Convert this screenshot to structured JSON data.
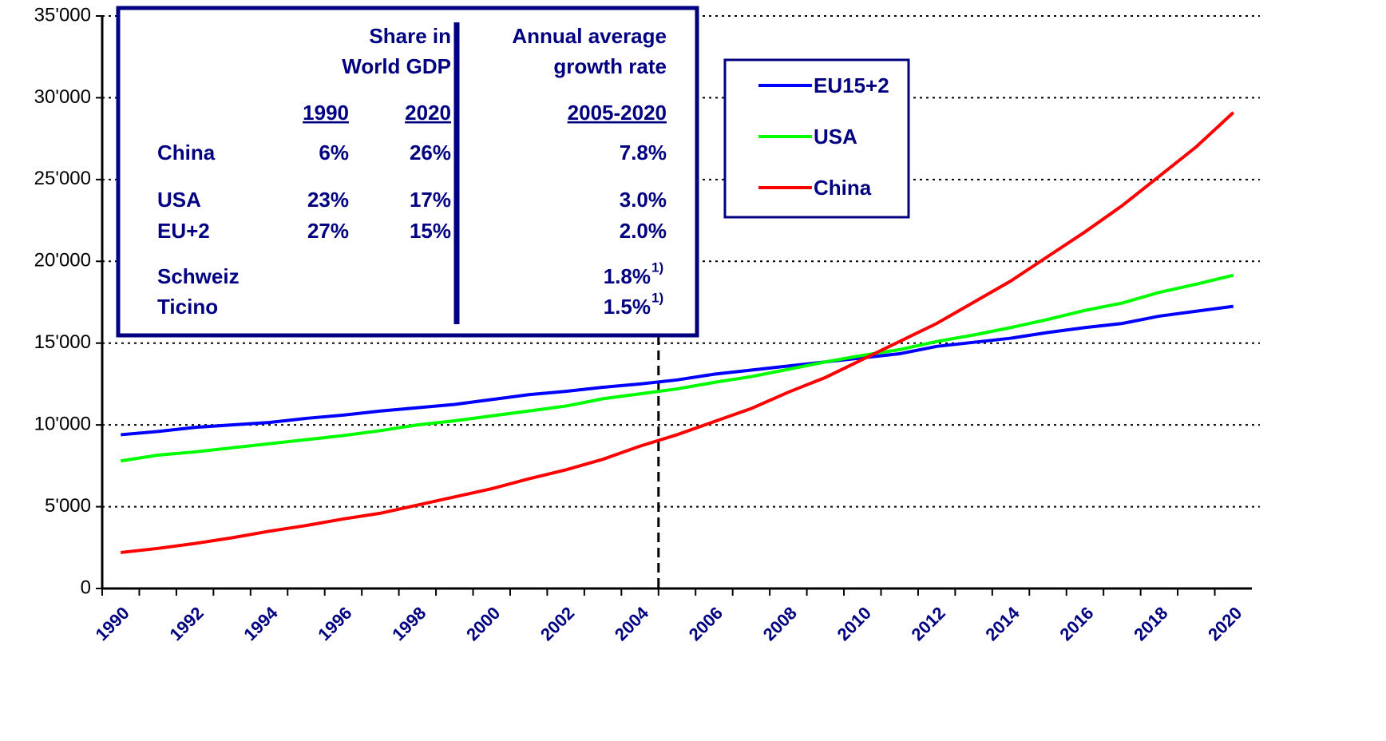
{
  "chart_data": {
    "type": "line",
    "categories": [
      "1990",
      null,
      "1992",
      null,
      "1994",
      null,
      "1996",
      null,
      "1998",
      null,
      "2000",
      null,
      "2002",
      null,
      "2004",
      null,
      "2006",
      null,
      "2008",
      null,
      "2010",
      null,
      "2012",
      null,
      "2014",
      null,
      "2016",
      null,
      "2018",
      null,
      "2020"
    ],
    "series": [
      {
        "name": "EU15+2",
        "color": "#0000ff",
        "values": [
          9400,
          9600,
          9850,
          10000,
          10150,
          10400,
          10600,
          10850,
          11050,
          11250,
          11550,
          11850,
          12050,
          12300,
          12500,
          12750,
          13100,
          13350,
          13600,
          13850,
          14100,
          14350,
          14800,
          15050,
          15300,
          15650,
          15950,
          16200,
          16650,
          16950,
          17250
        ]
      },
      {
        "name": "USA",
        "color": "#00ff00",
        "values": [
          7800,
          8150,
          8350,
          8600,
          8850,
          9100,
          9350,
          9650,
          10000,
          10250,
          10550,
          10850,
          11150,
          11600,
          11900,
          12200,
          12600,
          12950,
          13400,
          13850,
          14250,
          14600,
          15100,
          15500,
          15950,
          16450,
          17000,
          17450,
          18100,
          18600,
          19150
        ]
      },
      {
        "name": "China",
        "color": "#ff0000",
        "values": [
          2200,
          2450,
          2750,
          3100,
          3500,
          3850,
          4250,
          4600,
          5100,
          5600,
          6100,
          6700,
          7250,
          7900,
          8700,
          9400,
          10200,
          11000,
          12000,
          12900,
          14000,
          15100,
          16200,
          17500,
          18800,
          20300,
          21800,
          23400,
          25200,
          27000,
          29100
        ]
      }
    ],
    "ylim": [
      0,
      35000
    ],
    "yticks": [
      0,
      {
        "value": 5000,
        "label": "5'000"
      },
      {
        "value": 10000,
        "label": "10'000"
      },
      {
        "value": 15000,
        "label": "15'000"
      },
      {
        "value": 20000,
        "label": "20'000"
      },
      {
        "value": 25000,
        "label": "25'000"
      },
      {
        "value": 30000,
        "label": "30'000"
      },
      {
        "value": 35000,
        "label": "35'000"
      }
    ],
    "grid": true,
    "legend": "upper right",
    "marker_category": "2005"
  },
  "table": {
    "header": {
      "share": [
        "Share in",
        "World GDP"
      ],
      "growth": [
        "Annual average",
        "growth rate"
      ]
    },
    "columns": [
      "1990",
      "2020",
      "2005-2020"
    ],
    "rows": [
      {
        "label": "China",
        "share_1990": "6%",
        "share_2020": "26%",
        "growth": "7.8%"
      },
      {
        "label": "USA",
        "share_1990": "23%",
        "share_2020": "17%",
        "growth": "3.0%"
      },
      {
        "label": "EU+2",
        "share_1990": "27%",
        "share_2020": "15%",
        "growth": "2.0%"
      },
      {
        "label": "Schweiz",
        "growth": "1.8%",
        "note": "1)"
      },
      {
        "label": "Ticino",
        "growth": "1.5%",
        "note": "1)"
      }
    ]
  }
}
